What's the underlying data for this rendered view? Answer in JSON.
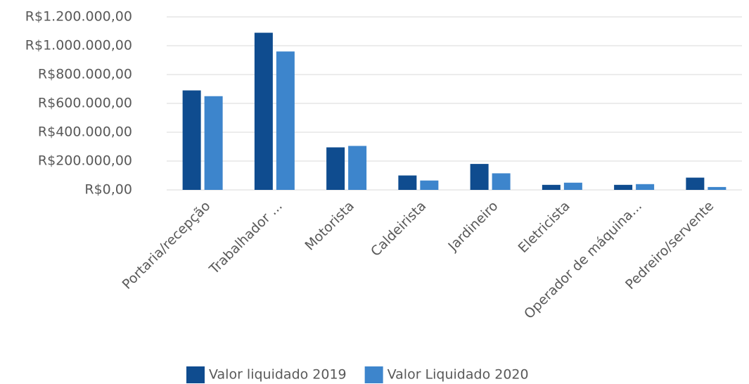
{
  "chart_data": {
    "type": "bar",
    "categories": [
      "Portaria/recepção",
      "Trabalhador ...",
      "Motorista",
      "Caldeirista",
      "Jardineiro",
      "Eletricista",
      "Operador de máquina...",
      "Pedreiro/servente"
    ],
    "series": [
      {
        "name": "Valor liquidado 2019",
        "color": "#0f4c8f",
        "values": [
          690000,
          1090000,
          295000,
          100000,
          180000,
          35000,
          35000,
          85000
        ]
      },
      {
        "name": "Valor Liquidado 2020",
        "color": "#3d85cc",
        "values": [
          650000,
          960000,
          305000,
          65000,
          115000,
          50000,
          40000,
          20000
        ]
      }
    ],
    "ylim": [
      0,
      1200000
    ],
    "yticks": [
      {
        "value": 0,
        "label": "R$0,00"
      },
      {
        "value": 200000,
        "label": "R$200.000,00"
      },
      {
        "value": 400000,
        "label": "R$400.000,00"
      },
      {
        "value": 600000,
        "label": "R$600.000,00"
      },
      {
        "value": 800000,
        "label": "R$800.000,00"
      },
      {
        "value": 1000000,
        "label": "R$1.000.000,00"
      },
      {
        "value": 1200000,
        "label": "R$1.200.000,00"
      }
    ],
    "grid": true,
    "legend": "bottom"
  }
}
